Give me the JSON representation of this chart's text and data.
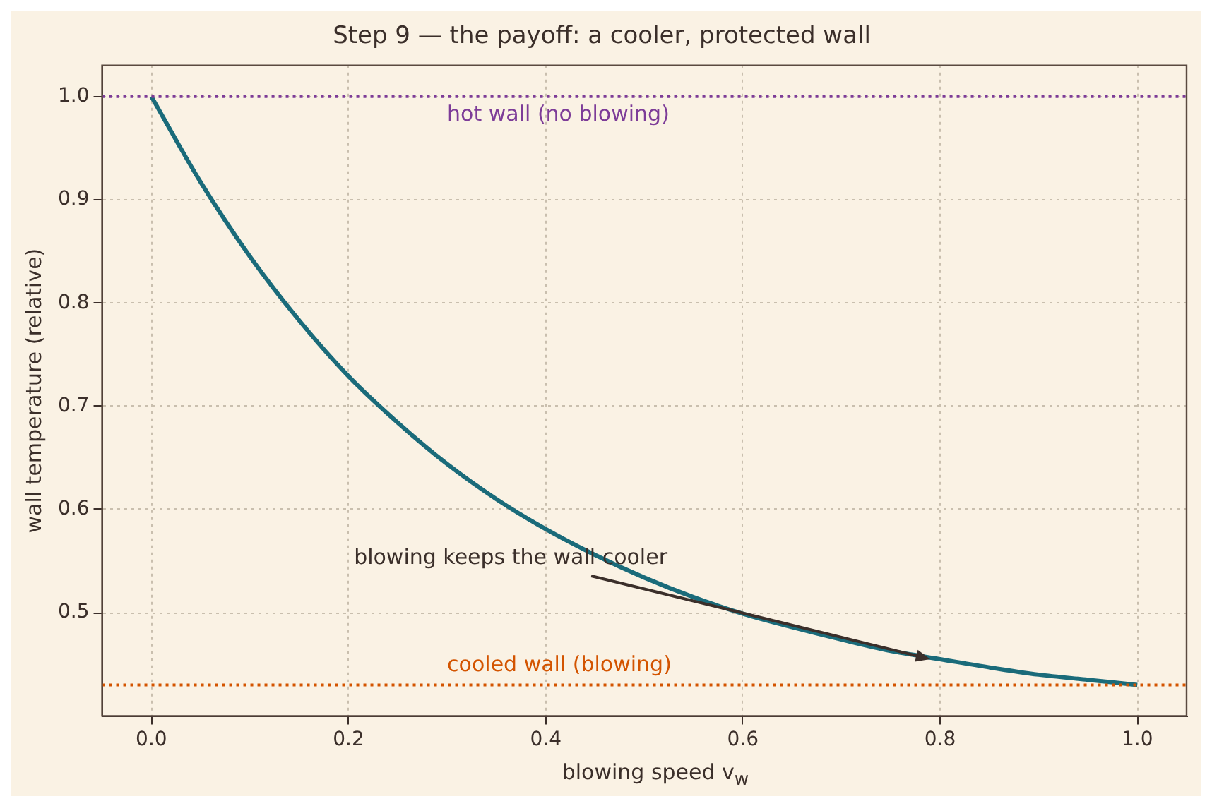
{
  "chart_data": {
    "type": "line",
    "title": "Step 9 — the payoff: a cooler, protected wall",
    "xlabel": "blowing speed  v$_{w}$",
    "ylabel": "wall temperature (relative)",
    "x": [
      0,
      0.05,
      0.1,
      0.15,
      0.2,
      0.25,
      0.3,
      0.35,
      0.4,
      0.45,
      0.5,
      0.55,
      0.6,
      0.65,
      0.7,
      0.75,
      0.8,
      0.85,
      0.9,
      0.95,
      1.0
    ],
    "series": [
      {
        "color": "#1a6b7a",
        "values": [
          1.0,
          0.917,
          0.845,
          0.783,
          0.729,
          0.684,
          0.644,
          0.61,
          0.581,
          0.556,
          0.534,
          0.515,
          0.499,
          0.486,
          0.474,
          0.463,
          0.455,
          0.447,
          0.44,
          0.435,
          0.43
        ]
      }
    ],
    "xlim": [
      -0.05,
      1.05
    ],
    "ylim": [
      0.4,
      1.03
    ],
    "xticks": [
      {
        "value": 0,
        "label": "0.0"
      },
      0.2,
      0.4,
      0.6,
      0.8,
      {
        "value": 1,
        "label": "1.0"
      }
    ],
    "yticks": [
      0.5,
      0.6,
      0.7,
      0.8,
      0.9,
      {
        "value": 1,
        "label": "1.0"
      }
    ],
    "ref_lines": [
      {
        "axis": "y",
        "value": 1.0,
        "label": "hot wall (no blowing)",
        "color": "#7d3c98",
        "line_style": "dotted"
      },
      {
        "axis": "y",
        "value": 0.43,
        "label": "cooled wall (blowing)",
        "color": "#d35400",
        "line_style": "dotted"
      }
    ],
    "annotations": [
      {
        "text": "blowing keeps the wall cooler",
        "x": 0.79,
        "y": 0.455
      }
    ],
    "grid": true,
    "marker": "none",
    "line_style": "solid"
  }
}
